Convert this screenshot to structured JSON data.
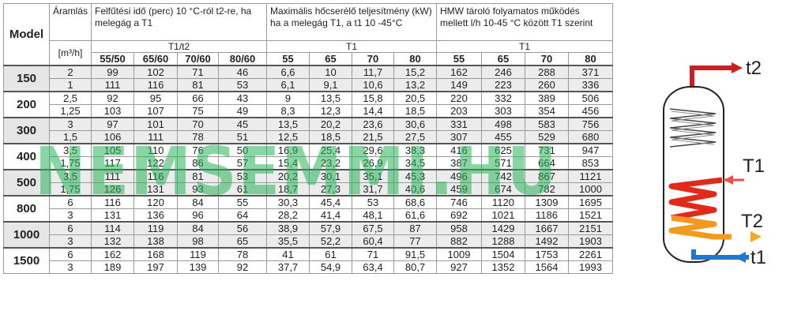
{
  "headers": {
    "model": "Model",
    "flow": "Áramlás",
    "flow_unit": "[m³/h]",
    "heatup": "Felfűtési idő (perc) 10 °C-ról t2-re, ha melegág a T1",
    "power": "Maximális hőcserélő teljesítmény (kW) ha a melegág T1, a t1 10 -45°C",
    "hmw": "HMW tároló folyamatos működés mellett l/h 10-45 °C között T1 szerint",
    "heatup_sub": "T1/t2",
    "power_sub": "T1",
    "hmw_sub": "T1",
    "heatup_cols": [
      "55/50",
      "65/60",
      "70/60",
      "80/60"
    ],
    "power_cols": [
      "55",
      "65",
      "70",
      "80"
    ],
    "hmw_cols": [
      "55",
      "65",
      "70",
      "80"
    ]
  },
  "models": [
    {
      "name": "150",
      "shaded": true,
      "rows": [
        {
          "flow": "2",
          "values": [
            "99",
            "102",
            "71",
            "46",
            "6,6",
            "10",
            "11,7",
            "15,2",
            "162",
            "246",
            "288",
            "371"
          ]
        },
        {
          "flow": "1",
          "values": [
            "111",
            "116",
            "81",
            "53",
            "6,1",
            "9,1",
            "10,6",
            "13,2",
            "149",
            "223",
            "260",
            "336"
          ]
        }
      ]
    },
    {
      "name": "200",
      "shaded": false,
      "rows": [
        {
          "flow": "2,5",
          "values": [
            "92",
            "95",
            "66",
            "43",
            "9",
            "13,5",
            "15,8",
            "20,5",
            "220",
            "332",
            "389",
            "506"
          ]
        },
        {
          "flow": "1,25",
          "values": [
            "103",
            "107",
            "75",
            "49",
            "8,3",
            "12,3",
            "14,4",
            "18,5",
            "203",
            "303",
            "354",
            "456"
          ]
        }
      ]
    },
    {
      "name": "300",
      "shaded": true,
      "rows": [
        {
          "flow": "3",
          "values": [
            "97",
            "101",
            "70",
            "45",
            "13,5",
            "20,2",
            "23,6",
            "30,6",
            "331",
            "498",
            "583",
            "756"
          ]
        },
        {
          "flow": "1,5",
          "values": [
            "106",
            "111",
            "78",
            "51",
            "12,5",
            "18,5",
            "21,5",
            "27,5",
            "307",
            "455",
            "529",
            "680"
          ]
        }
      ]
    },
    {
      "name": "400",
      "shaded": false,
      "rows": [
        {
          "flow": "3,5",
          "values": [
            "105",
            "110",
            "76",
            "50",
            "16,9",
            "25,4",
            "29,6",
            "38,3",
            "416",
            "625",
            "731",
            "947"
          ]
        },
        {
          "flow": "1,75",
          "values": [
            "117",
            "122",
            "86",
            "57",
            "15,4",
            "23,2",
            "26,9",
            "34,5",
            "387",
            "571",
            "664",
            "853"
          ]
        }
      ]
    },
    {
      "name": "500",
      "shaded": true,
      "rows": [
        {
          "flow": "3,5",
          "values": [
            "111",
            "116",
            "81",
            "53",
            "20,2",
            "30,1",
            "35,1",
            "45,3",
            "496",
            "742",
            "867",
            "1121"
          ]
        },
        {
          "flow": "1,75",
          "values": [
            "126",
            "131",
            "93",
            "61",
            "18,7",
            "27,3",
            "31,7",
            "40,6",
            "459",
            "674",
            "782",
            "1000"
          ]
        }
      ]
    },
    {
      "name": "800",
      "shaded": false,
      "rows": [
        {
          "flow": "6",
          "values": [
            "116",
            "120",
            "84",
            "55",
            "30,3",
            "45,4",
            "53",
            "68,6",
            "746",
            "1120",
            "1309",
            "1695"
          ]
        },
        {
          "flow": "3",
          "values": [
            "131",
            "136",
            "96",
            "64",
            "28,2",
            "41,4",
            "48,1",
            "61,6",
            "692",
            "1021",
            "1186",
            "1521"
          ]
        }
      ]
    },
    {
      "name": "1000",
      "shaded": true,
      "rows": [
        {
          "flow": "6",
          "values": [
            "114",
            "119",
            "84",
            "56",
            "38,9",
            "57,9",
            "67,5",
            "87",
            "958",
            "1429",
            "1667",
            "2151"
          ]
        },
        {
          "flow": "3",
          "values": [
            "132",
            "138",
            "98",
            "65",
            "35,5",
            "52,2",
            "60,4",
            "77",
            "882",
            "1288",
            "1492",
            "1903"
          ]
        }
      ]
    },
    {
      "name": "1500",
      "shaded": false,
      "rows": [
        {
          "flow": "6",
          "values": [
            "162",
            "168",
            "119",
            "78",
            "41",
            "61",
            "71",
            "91,5",
            "1009",
            "1504",
            "1753",
            "2261"
          ]
        },
        {
          "flow": "3",
          "values": [
            "189",
            "197",
            "139",
            "92",
            "37,7",
            "54,9",
            "63,4",
            "80,7",
            "927",
            "1352",
            "1564",
            "1993"
          ]
        }
      ]
    }
  ],
  "watermark": "NEMSEMMI.HU",
  "diagram": {
    "label_t2": "t2",
    "label_T1": "T1",
    "label_T2": "T2",
    "label_t1": "t1",
    "colors": {
      "hot_out": "#cc1f1f",
      "T1_in": "#e8504a",
      "T2_out": "#f5a623",
      "cold_in": "#1f78d1",
      "coil_hot": "#e02b1a",
      "coil_warm": "#f29a1e"
    }
  }
}
